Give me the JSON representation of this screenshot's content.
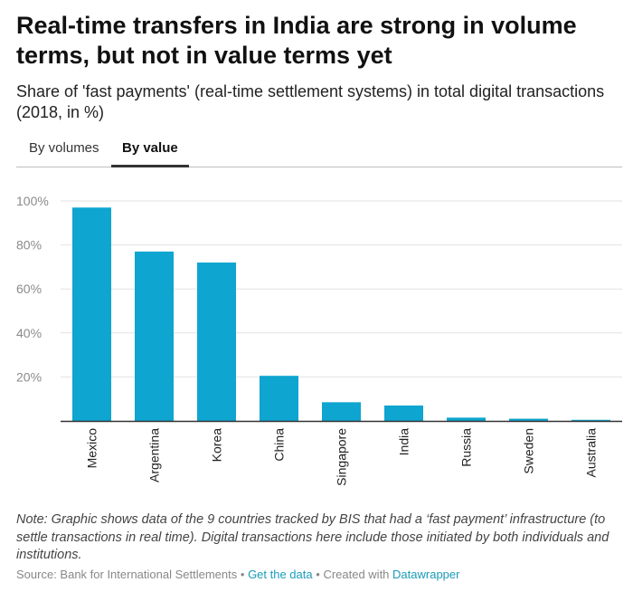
{
  "title": "Real-time transfers in India are strong in volume terms, but not in value terms yet",
  "subtitle": "Share of 'fast payments' (real-time settlement systems) in total digital transactions (2018, in %)",
  "tabs": [
    {
      "label": "By volumes",
      "active": false
    },
    {
      "label": "By value",
      "active": true
    }
  ],
  "chart_data": {
    "type": "bar",
    "title": "Share of 'fast payments' in total digital transactions (2018, by value)",
    "categories": [
      "Mexico",
      "Argentina",
      "Korea",
      "China",
      "Singapore",
      "India",
      "Russia",
      "Sweden",
      "Australia"
    ],
    "values": [
      97,
      77,
      72,
      20.5,
      8.5,
      7,
      1.5,
      1,
      0.5
    ],
    "yticks": [
      20,
      40,
      60,
      80,
      100
    ],
    "ytick_labels": [
      "20%",
      "40%",
      "60%",
      "80%",
      "100%"
    ],
    "ylim": [
      0,
      100
    ],
    "xlabel": "",
    "ylabel": "",
    "bar_color": "#0ea5d0"
  },
  "note": "Note: Graphic shows data of the 9 countries tracked by BIS that had a ‘fast payment’ infrastructure (to settle transactions in real time). Digital transactions here include those initiated by both individuals and institutions.",
  "footer": {
    "source": "Source: Bank for International Settlements",
    "separator": "•",
    "get_data": "Get the data",
    "created_with": "Created with",
    "tool": "Datawrapper"
  }
}
